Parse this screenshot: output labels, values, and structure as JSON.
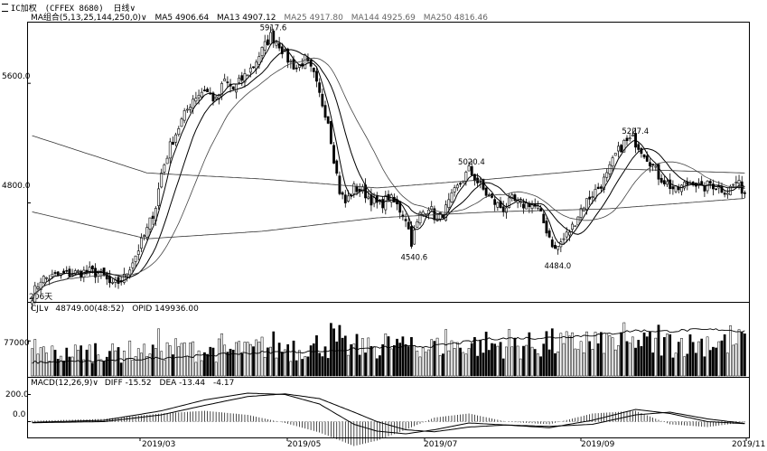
{
  "title_bar": {
    "symbol": "IC加权",
    "code": "(CFFEX 8680)",
    "period": "日线",
    "period_caret": "∨"
  },
  "ma_legend": {
    "name": "MA组合(5,13,25,144,250,0)",
    "caret": "∨",
    "items": [
      {
        "label": "MA5 4906.64"
      },
      {
        "label": "MA13 4907.12"
      },
      {
        "label": "MA25 4917.80"
      },
      {
        "label": "MA144 4925.69"
      },
      {
        "label": "MA250 4816.46"
      }
    ]
  },
  "price_axis": {
    "ticks": [
      {
        "label": "5600.0",
        "value": 5600
      },
      {
        "label": "4800.0",
        "value": 4800
      }
    ]
  },
  "annotations": [
    {
      "label": "5917.6",
      "value": 5917.6
    },
    {
      "label": "5020.4",
      "value": 5020.4
    },
    {
      "label": "5227.4",
      "value": 5227.4
    },
    {
      "label": "4540.6",
      "value": 4540.6
    },
    {
      "label": "4484.0",
      "value": 4484.0
    }
  ],
  "bars_count_label": "206天",
  "volume_legend": {
    "name": "CJL",
    "caret": "∨",
    "value": "48749.00(48:52)",
    "opi": "OPID 149936.00"
  },
  "volume_axis": {
    "ticks": [
      {
        "label": "77000",
        "value": 77000
      }
    ]
  },
  "macd_legend": {
    "name": "MACD(12,26,9)",
    "caret": "∨",
    "diff": "DIFF -15.52",
    "dea": "DEA -13.44",
    "macd": "-4.17"
  },
  "macd_axis": {
    "ticks": [
      {
        "label": "200.0",
        "value": 200
      },
      {
        "label": "0.0",
        "value": 0
      }
    ]
  },
  "date_axis": {
    "labels": [
      "2019/03",
      "2019/05",
      "2019/07",
      "2019/09",
      "2019/11"
    ]
  },
  "chart_data": {
    "type": "candlestick",
    "panels": [
      "price",
      "volume",
      "macd"
    ],
    "price_range": [
      4150,
      6000
    ],
    "volume_range": [
      0,
      135000
    ],
    "macd_range": [
      -110,
      250
    ],
    "grid": false,
    "price_path": [
      [
        0,
        4180
      ],
      [
        3,
        4290
      ],
      [
        8,
        4310
      ],
      [
        14,
        4330
      ],
      [
        20,
        4340
      ],
      [
        24,
        4320
      ],
      [
        28,
        4240
      ],
      [
        32,
        4300
      ],
      [
        36,
        4450
      ],
      [
        40,
        4620
      ],
      [
        43,
        4780
      ],
      [
        45,
        5000
      ],
      [
        48,
        5180
      ],
      [
        52,
        5350
      ],
      [
        56,
        5500
      ],
      [
        60,
        5560
      ],
      [
        64,
        5480
      ],
      [
        67,
        5620
      ],
      [
        70,
        5560
      ],
      [
        74,
        5650
      ],
      [
        77,
        5720
      ],
      [
        80,
        5820
      ],
      [
        83,
        5917.6
      ],
      [
        86,
        5860
      ],
      [
        89,
        5760
      ],
      [
        92,
        5700
      ],
      [
        95,
        5760
      ],
      [
        98,
        5650
      ],
      [
        100,
        5520
      ],
      [
        103,
        5350
      ],
      [
        105,
        5100
      ],
      [
        107,
        4880
      ],
      [
        109,
        4800
      ],
      [
        112,
        4900
      ],
      [
        115,
        4880
      ],
      [
        118,
        4820
      ],
      [
        121,
        4780
      ],
      [
        124,
        4840
      ],
      [
        127,
        4780
      ],
      [
        130,
        4700
      ],
      [
        132,
        4540.6
      ],
      [
        135,
        4720
      ],
      [
        138,
        4780
      ],
      [
        141,
        4680
      ],
      [
        144,
        4760
      ],
      [
        147,
        4870
      ],
      [
        150,
        4960
      ],
      [
        152,
        5020.4
      ],
      [
        155,
        4940
      ],
      [
        158,
        4860
      ],
      [
        161,
        4800
      ],
      [
        164,
        4760
      ],
      [
        167,
        4820
      ],
      [
        170,
        4780
      ],
      [
        173,
        4800
      ],
      [
        176,
        4760
      ],
      [
        179,
        4620
      ],
      [
        182,
        4484
      ],
      [
        185,
        4560
      ],
      [
        188,
        4640
      ],
      [
        191,
        4760
      ],
      [
        194,
        4840
      ],
      [
        197,
        4900
      ],
      [
        200,
        4980
      ],
      [
        203,
        5120
      ],
      [
        206,
        5200
      ],
      [
        209,
        5227.4
      ],
      [
        212,
        5160
      ],
      [
        215,
        5080
      ],
      [
        218,
        4980
      ],
      [
        221,
        4930
      ],
      [
        224,
        4880
      ],
      [
        227,
        4920
      ],
      [
        230,
        4950
      ],
      [
        233,
        4890
      ],
      [
        236,
        4930
      ],
      [
        239,
        4900
      ],
      [
        242,
        4880
      ],
      [
        245,
        4940
      ],
      [
        248,
        4870
      ]
    ],
    "series": [
      {
        "name": "MA5",
        "color": "#000000"
      },
      {
        "name": "MA13",
        "color": "#000000"
      },
      {
        "name": "MA25",
        "color": "#000000"
      },
      {
        "name": "MA144",
        "color": "#000000"
      },
      {
        "name": "MA250",
        "color": "#000000"
      }
    ],
    "ma144_path": [
      [
        0,
        5250
      ],
      [
        40,
        5000
      ],
      [
        80,
        4960
      ],
      [
        120,
        4900
      ],
      [
        160,
        4960
      ],
      [
        200,
        5030
      ],
      [
        248,
        5000
      ]
    ],
    "ma250_path": [
      [
        0,
        4740
      ],
      [
        40,
        4560
      ],
      [
        80,
        4610
      ],
      [
        120,
        4700
      ],
      [
        160,
        4740
      ],
      [
        200,
        4760
      ],
      [
        248,
        4830
      ]
    ],
    "opi_path": [
      [
        0,
        30000
      ],
      [
        20,
        32000
      ],
      [
        40,
        38000
      ],
      [
        60,
        45000
      ],
      [
        80,
        52000
      ],
      [
        100,
        54000
      ],
      [
        120,
        62000
      ],
      [
        140,
        66000
      ],
      [
        160,
        82000
      ],
      [
        180,
        84000
      ],
      [
        200,
        92000
      ],
      [
        210,
        100000
      ],
      [
        220,
        98000
      ],
      [
        230,
        101000
      ],
      [
        240,
        102000
      ],
      [
        248,
        98000
      ]
    ],
    "macd_diff_path": [
      [
        0,
        -5
      ],
      [
        25,
        10
      ],
      [
        45,
        80
      ],
      [
        60,
        160
      ],
      [
        75,
        210
      ],
      [
        88,
        200
      ],
      [
        100,
        130
      ],
      [
        112,
        -20
      ],
      [
        120,
        -70
      ],
      [
        130,
        -90
      ],
      [
        140,
        -60
      ],
      [
        152,
        -10
      ],
      [
        165,
        -25
      ],
      [
        180,
        -45
      ],
      [
        195,
        10
      ],
      [
        210,
        90
      ],
      [
        222,
        60
      ],
      [
        235,
        0
      ],
      [
        248,
        -15
      ]
    ],
    "macd_dea_path": [
      [
        0,
        -8
      ],
      [
        25,
        0
      ],
      [
        45,
        50
      ],
      [
        60,
        120
      ],
      [
        75,
        185
      ],
      [
        88,
        205
      ],
      [
        100,
        170
      ],
      [
        112,
        70
      ],
      [
        120,
        0
      ],
      [
        130,
        -60
      ],
      [
        140,
        -75
      ],
      [
        152,
        -40
      ],
      [
        165,
        -25
      ],
      [
        180,
        -35
      ],
      [
        195,
        -20
      ],
      [
        210,
        50
      ],
      [
        222,
        70
      ],
      [
        235,
        20
      ],
      [
        248,
        -13
      ]
    ]
  }
}
